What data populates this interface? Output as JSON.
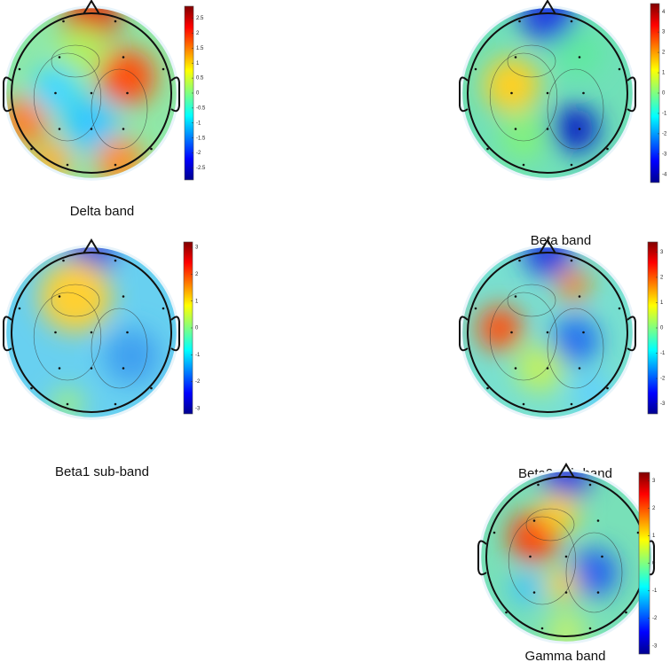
{
  "panels": [
    {
      "label": "Delta band",
      "clim": [
        -2.9,
        2.9
      ],
      "ticks": [
        2.5,
        2,
        1.5,
        1,
        0.5,
        0,
        -0.5,
        -1,
        -1.5,
        -2,
        -2.5
      ]
    },
    {
      "label": "Beta band",
      "clim": [
        -4.4,
        4.4
      ],
      "ticks": [
        4,
        3,
        2,
        1,
        0,
        -1,
        -2,
        -3,
        -4
      ]
    },
    {
      "label": "Beta1 sub-band",
      "clim": [
        -3.2,
        3.2
      ],
      "ticks": [
        3,
        2,
        1,
        0,
        -1,
        -2,
        -3
      ]
    },
    {
      "label": "Beta2 sub-band",
      "clim": [
        -3.4,
        3.4
      ],
      "ticks": [
        3,
        2,
        1,
        0,
        -1,
        -2,
        -3
      ]
    },
    {
      "label": "Gamma band",
      "clim": [
        -3.3,
        3.3
      ],
      "ticks": [
        3,
        2,
        1,
        0,
        -1,
        -2,
        -3
      ]
    }
  ]
}
